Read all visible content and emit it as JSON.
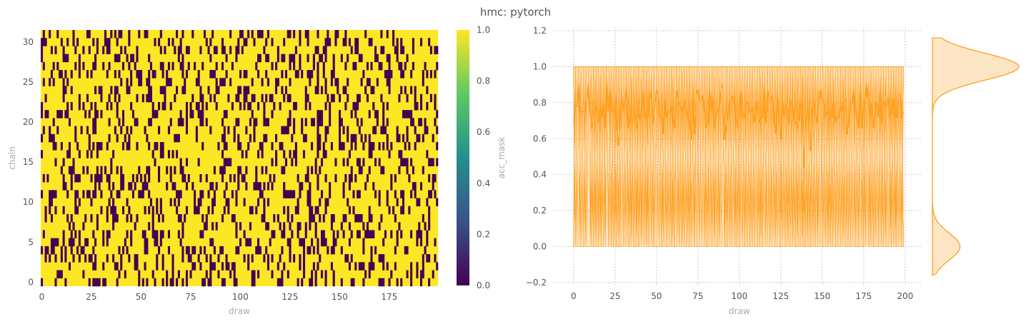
{
  "figure_title": "hmc: pytorch",
  "chart_data": [
    {
      "type": "heatmap",
      "xlabel": "draw",
      "ylabel": "chain",
      "x_range": [
        0,
        199
      ],
      "y_range": [
        0,
        31
      ],
      "x_ticks": [
        0,
        25,
        50,
        75,
        100,
        125,
        150,
        175
      ],
      "y_ticks": [
        0,
        5,
        10,
        15,
        20,
        25,
        30
      ],
      "colorbar": {
        "label": "acc_mask",
        "range": [
          0.0,
          1.0
        ],
        "ticks": [
          "0.0",
          "0.2",
          "0.4",
          "0.6",
          "0.8",
          "1.0"
        ],
        "colors": [
          "#440154",
          "#3b528b",
          "#21918c",
          "#5ec962",
          "#fde725"
        ]
      },
      "values_description": "binary acceptance mask (0 or 1) per chain and draw; about 75% of cells accepted"
    },
    {
      "type": "line",
      "xlabel": "draw",
      "ylabel": "",
      "xlim": [
        -12,
        210
      ],
      "ylim": [
        -0.22,
        1.22
      ],
      "x_ticks": [
        0,
        25,
        50,
        75,
        100,
        125,
        150,
        175,
        200
      ],
      "y_ticks": [
        "-0.2",
        "0.0",
        "0.2",
        "0.4",
        "0.6",
        "0.8",
        "1.0",
        "1.2"
      ],
      "grid": true,
      "color": "#ffa01e",
      "series": [
        {
          "values_description": "per-chain acceptance (0/1) over 200 draws, overlaid"
        },
        {
          "values_description": "mean acceptance across chains, fluctuating around 0.76 (range ~0.68–0.84)"
        }
      ],
      "marginal": {
        "type": "density",
        "peaks": [
          {
            "at": 1.0,
            "relative_height": 1.0
          },
          {
            "at": 0.0,
            "relative_height": 0.32
          }
        ],
        "color": "#ffa01e"
      }
    }
  ]
}
